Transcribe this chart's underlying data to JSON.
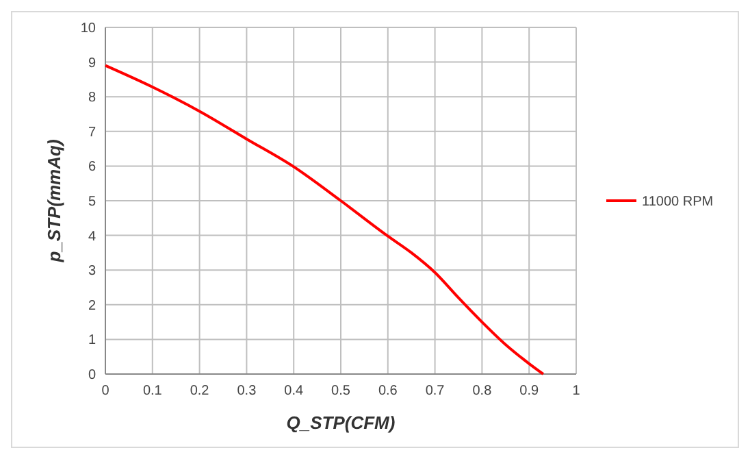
{
  "chart_data": {
    "type": "line",
    "xlabel": "Q_STP(CFM)",
    "ylabel": "p_STP(mmAq)",
    "x": [
      0,
      0.1,
      0.2,
      0.3,
      0.4,
      0.5,
      0.6,
      0.65,
      0.7,
      0.75,
      0.8,
      0.85,
      0.9,
      0.93
    ],
    "series": [
      {
        "name": "11000 RPM",
        "color": "#ff0000",
        "values": [
          8.9,
          8.28,
          7.58,
          6.78,
          5.98,
          5.0,
          3.98,
          3.5,
          2.93,
          2.2,
          1.5,
          0.85,
          0.3,
          0
        ]
      }
    ],
    "xlim": [
      0,
      1
    ],
    "xticks": [
      0,
      0.1,
      0.2,
      0.3,
      0.4,
      0.5,
      0.6,
      0.7,
      0.8,
      0.9,
      1
    ],
    "ylim": [
      0,
      10
    ],
    "yticks": [
      0,
      1,
      2,
      3,
      4,
      5,
      6,
      7,
      8,
      9,
      10
    ],
    "grid": true,
    "legend": "right",
    "marker": "none",
    "line_style": "solid"
  }
}
